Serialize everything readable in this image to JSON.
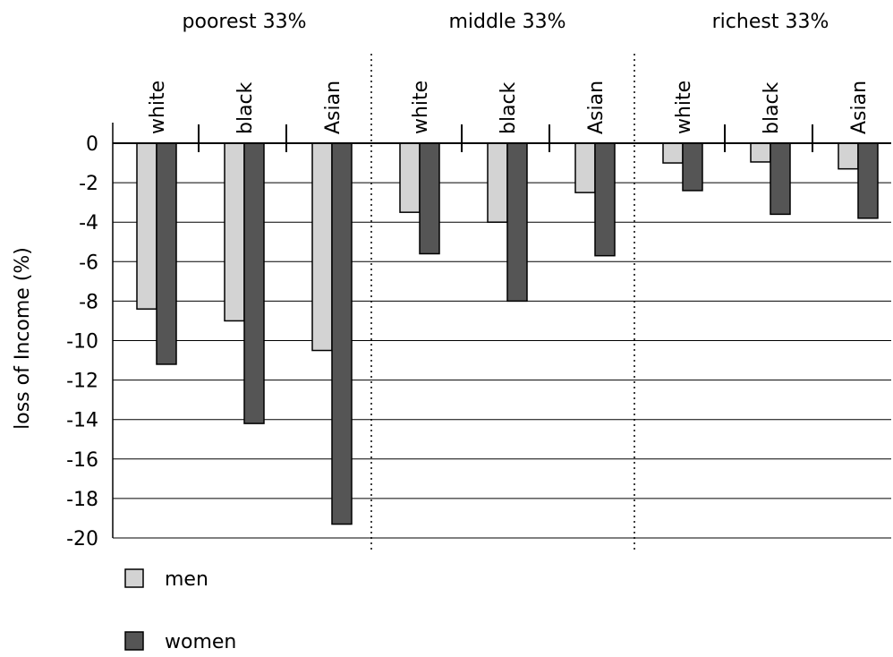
{
  "chart_data": {
    "type": "bar",
    "ylabel": "loss of Income (%)",
    "ylim": [
      -20,
      0
    ],
    "yticks": [
      0,
      -2,
      -4,
      -6,
      -8,
      -10,
      -12,
      -14,
      -16,
      -18,
      -20
    ],
    "grid": true,
    "legend_placement": "bottom-left",
    "groups": [
      {
        "label": "poorest 33%",
        "categories": [
          "white",
          "black",
          "Asian"
        ]
      },
      {
        "label": "middle 33%",
        "categories": [
          "white",
          "black",
          "Asian"
        ]
      },
      {
        "label": "richest 33%",
        "categories": [
          "white",
          "black",
          "Asian"
        ]
      }
    ],
    "series": [
      {
        "name": "men",
        "color": "#d3d3d3",
        "values": [
          -8.4,
          -9.0,
          -10.5,
          -3.5,
          -4.0,
          -2.5,
          -1.0,
          -0.95,
          -1.3
        ]
      },
      {
        "name": "women",
        "color": "#555555",
        "values": [
          -11.2,
          -14.2,
          -19.3,
          -5.6,
          -8.0,
          -5.7,
          -2.4,
          -3.6,
          -3.8
        ]
      }
    ]
  }
}
